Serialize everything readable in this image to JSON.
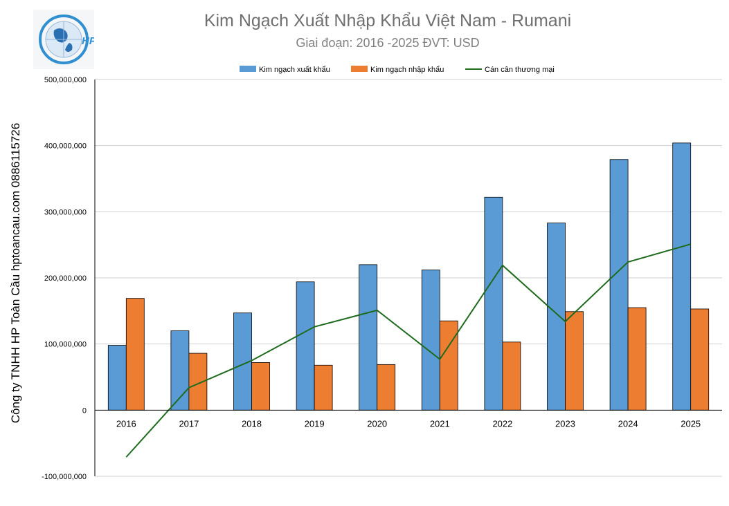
{
  "chart_data": {
    "type": "bar",
    "title": "Kim Ngạch Xuất Nhập Khẩu Việt Nam - Rumani",
    "subtitle": "Giai đoạn: 2016 -2025  ĐVT: USD",
    "side_text": "Công ty TNHH HP Toàn Cầu hptoancau.com 0886115726",
    "logo_text": "HP",
    "categories": [
      "2016",
      "2017",
      "2018",
      "2019",
      "2020",
      "2021",
      "2022",
      "2023",
      "2024",
      "2025"
    ],
    "series": [
      {
        "name": "Kim ngạch xuất khẩu",
        "kind": "bar",
        "color": "#5B9BD5",
        "values": [
          98000000,
          120000000,
          147000000,
          194000000,
          220000000,
          212000000,
          322000000,
          283000000,
          379000000,
          404000000
        ]
      },
      {
        "name": "Kim ngạch nhập khẩu",
        "kind": "bar",
        "color": "#ED7D31",
        "values": [
          169000000,
          86000000,
          72000000,
          68000000,
          69000000,
          135000000,
          103000000,
          149000000,
          155000000,
          153000000
        ]
      },
      {
        "name": "Cán cân thương mại",
        "kind": "line",
        "color": "#1E6B1E",
        "values": [
          -71000000,
          34000000,
          75000000,
          126000000,
          151000000,
          77000000,
          219000000,
          134000000,
          224000000,
          251000000
        ]
      }
    ],
    "yticks": [
      "500,000,000",
      "400,000,000",
      "300,000,000",
      "200,000,000",
      "100,000,000",
      "0",
      "-100,000,000"
    ],
    "ylim": [
      -100000000,
      500000000
    ],
    "grid": true,
    "legend_position": "top"
  }
}
